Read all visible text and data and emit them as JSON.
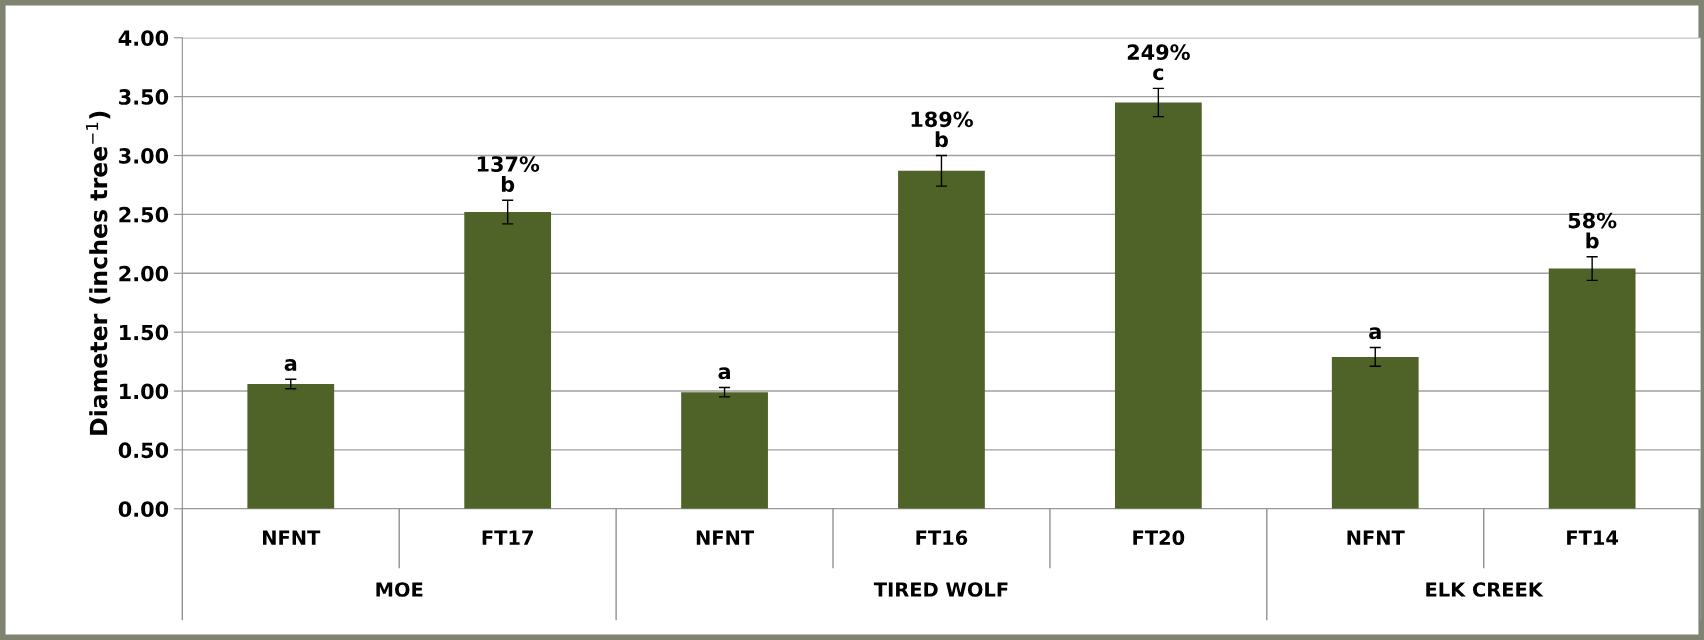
{
  "chart_data": {
    "type": "bar",
    "ylabel": "Diameter (inches tree$^{−1}$)",
    "categories": [
      "NFNT",
      "FT17",
      "NFNT",
      "FT16",
      "FT20",
      "NFNT",
      "FT14"
    ],
    "values": [
      1.06,
      2.52,
      0.99,
      2.87,
      3.45,
      1.29,
      2.04
    ],
    "errors": [
      0.04,
      0.1,
      0.04,
      0.13,
      0.12,
      0.08,
      0.1
    ],
    "color": "#4f6228",
    "ylim": [
      0,
      4
    ],
    "yticks": [
      {
        "value": 0,
        "label": "0.00"
      },
      {
        "value": 0.5,
        "label": "0.50"
      },
      {
        "value": 1,
        "label": "1.00"
      },
      {
        "value": 1.5,
        "label": "1.50"
      },
      {
        "value": 2,
        "label": "2.00"
      },
      {
        "value": 2.5,
        "label": "2.50"
      },
      {
        "value": 3,
        "label": "3.00"
      },
      {
        "value": 3.5,
        "label": "3.50"
      },
      {
        "value": 4,
        "label": "4.00"
      }
    ],
    "grid": "y",
    "legend": false,
    "annotations": [
      {
        "text": "137%\nb",
        "x": "FT17",
        "y": 2.62
      },
      {
        "text": "189%\nb",
        "x": "FT16",
        "y": 3.0
      },
      {
        "text": "249%\nc",
        "x": "FT20",
        "y": 3.57
      },
      {
        "text": "58%\nb",
        "x": "FT14",
        "y": 2.14
      },
      "a",
      "a",
      "a",
      "MOE",
      "TIRED WOLF",
      "ELK CREEK"
    ]
  }
}
